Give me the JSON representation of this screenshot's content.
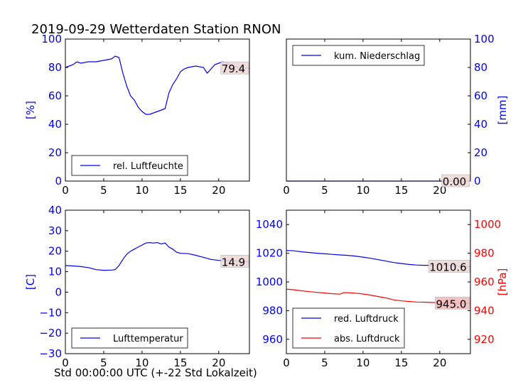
{
  "title": "2019-09-29 Wetterdaten Station RNON",
  "xlabel": "Std 00:00:00 UTC (+-22 Std Lokalzeit)",
  "colors": {
    "blue": "#0000ff",
    "red": "#ff0000",
    "last_value_box": "#f0d9d9",
    "last_value_box_red": "#f4bcbc"
  },
  "chart_data": [
    {
      "type": "line",
      "panel": "top-left",
      "ylabel": "[%]",
      "ylabel_color": "#0000ff",
      "xlim": [
        0,
        24
      ],
      "ylim": [
        0,
        100
      ],
      "xticks": [
        "0",
        "5",
        "10",
        "15",
        "20"
      ],
      "yticks": [
        "0",
        "20",
        "40",
        "60",
        "80",
        "100"
      ],
      "legend_position": "lower-center",
      "last_value_label": "79.4",
      "series": [
        {
          "name": "rel. Luftfeuchte",
          "color": "#0000ff",
          "x": [
            0,
            0.5,
            1,
            1.5,
            2,
            3,
            4,
            5,
            6,
            6.5,
            7,
            7.5,
            8,
            8.5,
            9,
            9.5,
            10,
            10.5,
            11,
            11.5,
            12,
            12.5,
            13,
            13.5,
            14,
            14.5,
            15,
            15.5,
            16,
            17,
            18,
            18.5,
            19,
            19.5,
            20,
            20.5,
            21,
            21.5,
            22,
            22.5,
            23,
            23.5,
            24
          ],
          "values": [
            80,
            81,
            82,
            84,
            83,
            84,
            84,
            85,
            86,
            88,
            87,
            76,
            67,
            60,
            57,
            52,
            49,
            47,
            47,
            48,
            49,
            50,
            51,
            62,
            68,
            72,
            77,
            79,
            80,
            81,
            80,
            76,
            79,
            82,
            83,
            84,
            83,
            82,
            81,
            80,
            79.5,
            79.4,
            79.4
          ]
        }
      ]
    },
    {
      "type": "line",
      "panel": "top-right",
      "ylabel": "[mm]",
      "ylabel_color": "#0000ff",
      "xlim": [
        0,
        24
      ],
      "ylim": [
        0,
        100
      ],
      "xticks": [
        "0",
        "5",
        "10",
        "15",
        "20"
      ],
      "yticks": [
        "0",
        "20",
        "40",
        "60",
        "80",
        "100"
      ],
      "legend_position": "upper-left",
      "last_value_label": "0.00",
      "series": [
        {
          "name": "kum. Niederschlag",
          "color": "#0000ff",
          "x": [
            0,
            24
          ],
          "values": [
            0,
            0
          ]
        }
      ]
    },
    {
      "type": "line",
      "panel": "bottom-left",
      "ylabel": "[C]",
      "ylabel_color": "#0000ff",
      "xlim": [
        0,
        24
      ],
      "ylim": [
        -30,
        40
      ],
      "xticks": [
        "0",
        "5",
        "10",
        "15",
        "20"
      ],
      "yticks": [
        "−30",
        "−20",
        "−10",
        "0",
        "10",
        "20",
        "30",
        "40"
      ],
      "legend_position": "lower-center",
      "last_value_label": "14.9",
      "series": [
        {
          "name": "Lufttemperatur",
          "color": "#0000ff",
          "x": [
            0,
            1,
            2,
            3,
            4,
            5,
            6,
            6.5,
            7,
            7.5,
            8,
            8.5,
            9,
            9.5,
            10,
            10.5,
            11,
            11.5,
            12,
            12.5,
            13,
            13.5,
            14,
            14.5,
            15,
            16,
            17,
            18,
            19,
            20,
            21,
            22,
            23,
            24
          ],
          "values": [
            13,
            12.8,
            12.5,
            12,
            11,
            10.7,
            10.8,
            11,
            13,
            16,
            18.5,
            20,
            21,
            22,
            23,
            24,
            24.2,
            24,
            24.2,
            23.5,
            24,
            22,
            21,
            19.5,
            19,
            18.8,
            18,
            17,
            16,
            15.5,
            15.5,
            15.2,
            15,
            14.9
          ]
        }
      ]
    },
    {
      "type": "line",
      "panel": "bottom-right",
      "ylabel": "[hPa]",
      "ylabel_color": "#ff0000",
      "xlim": [
        0,
        24
      ],
      "ylim": [
        950,
        1050
      ],
      "xticks": [
        "0",
        "5",
        "10",
        "15",
        "20"
      ],
      "yticks_left": [
        "960",
        "980",
        "1000",
        "1020",
        "1040"
      ],
      "ylim_right": [
        910,
        1010
      ],
      "yticks_right": [
        "920",
        "940",
        "960",
        "980",
        "1000"
      ],
      "legend_position": "lower-left",
      "last_value_labels": [
        "1010.6",
        "945.0"
      ],
      "series": [
        {
          "name": "red. Luftdruck",
          "color": "#0000ff",
          "axis": "left",
          "x": [
            0,
            1,
            2,
            3,
            4,
            5,
            6,
            7,
            8,
            9,
            10,
            11,
            12,
            13,
            14,
            15,
            16,
            17,
            18,
            19,
            20,
            21,
            22,
            23,
            24
          ],
          "values": [
            1022,
            1021.7,
            1021,
            1020.5,
            1020,
            1019.6,
            1019.2,
            1018.8,
            1018.5,
            1018,
            1017.3,
            1016.5,
            1015.5,
            1014.5,
            1013.5,
            1012.8,
            1012.2,
            1011.8,
            1011.6,
            1011.6,
            1011.8,
            1011.5,
            1011.2,
            1010.8,
            1010.6
          ]
        },
        {
          "name": "abs. Luftdruck",
          "color": "#ff0000",
          "axis": "right",
          "x": [
            0,
            1,
            2,
            3,
            4,
            5,
            6,
            7,
            7.5,
            8,
            9,
            10,
            11,
            12,
            13,
            14,
            15,
            16,
            17,
            18,
            19,
            20,
            21,
            22,
            23,
            24
          ],
          "values": [
            955,
            954.5,
            953.8,
            953.2,
            952.7,
            952.3,
            951.8,
            951.5,
            952.5,
            952.5,
            952.2,
            951.6,
            950.8,
            949.8,
            948.8,
            947.5,
            946.8,
            946.4,
            946,
            945.9,
            945.7,
            945.5,
            945.3,
            945.2,
            945.1,
            945.0
          ]
        }
      ]
    }
  ]
}
